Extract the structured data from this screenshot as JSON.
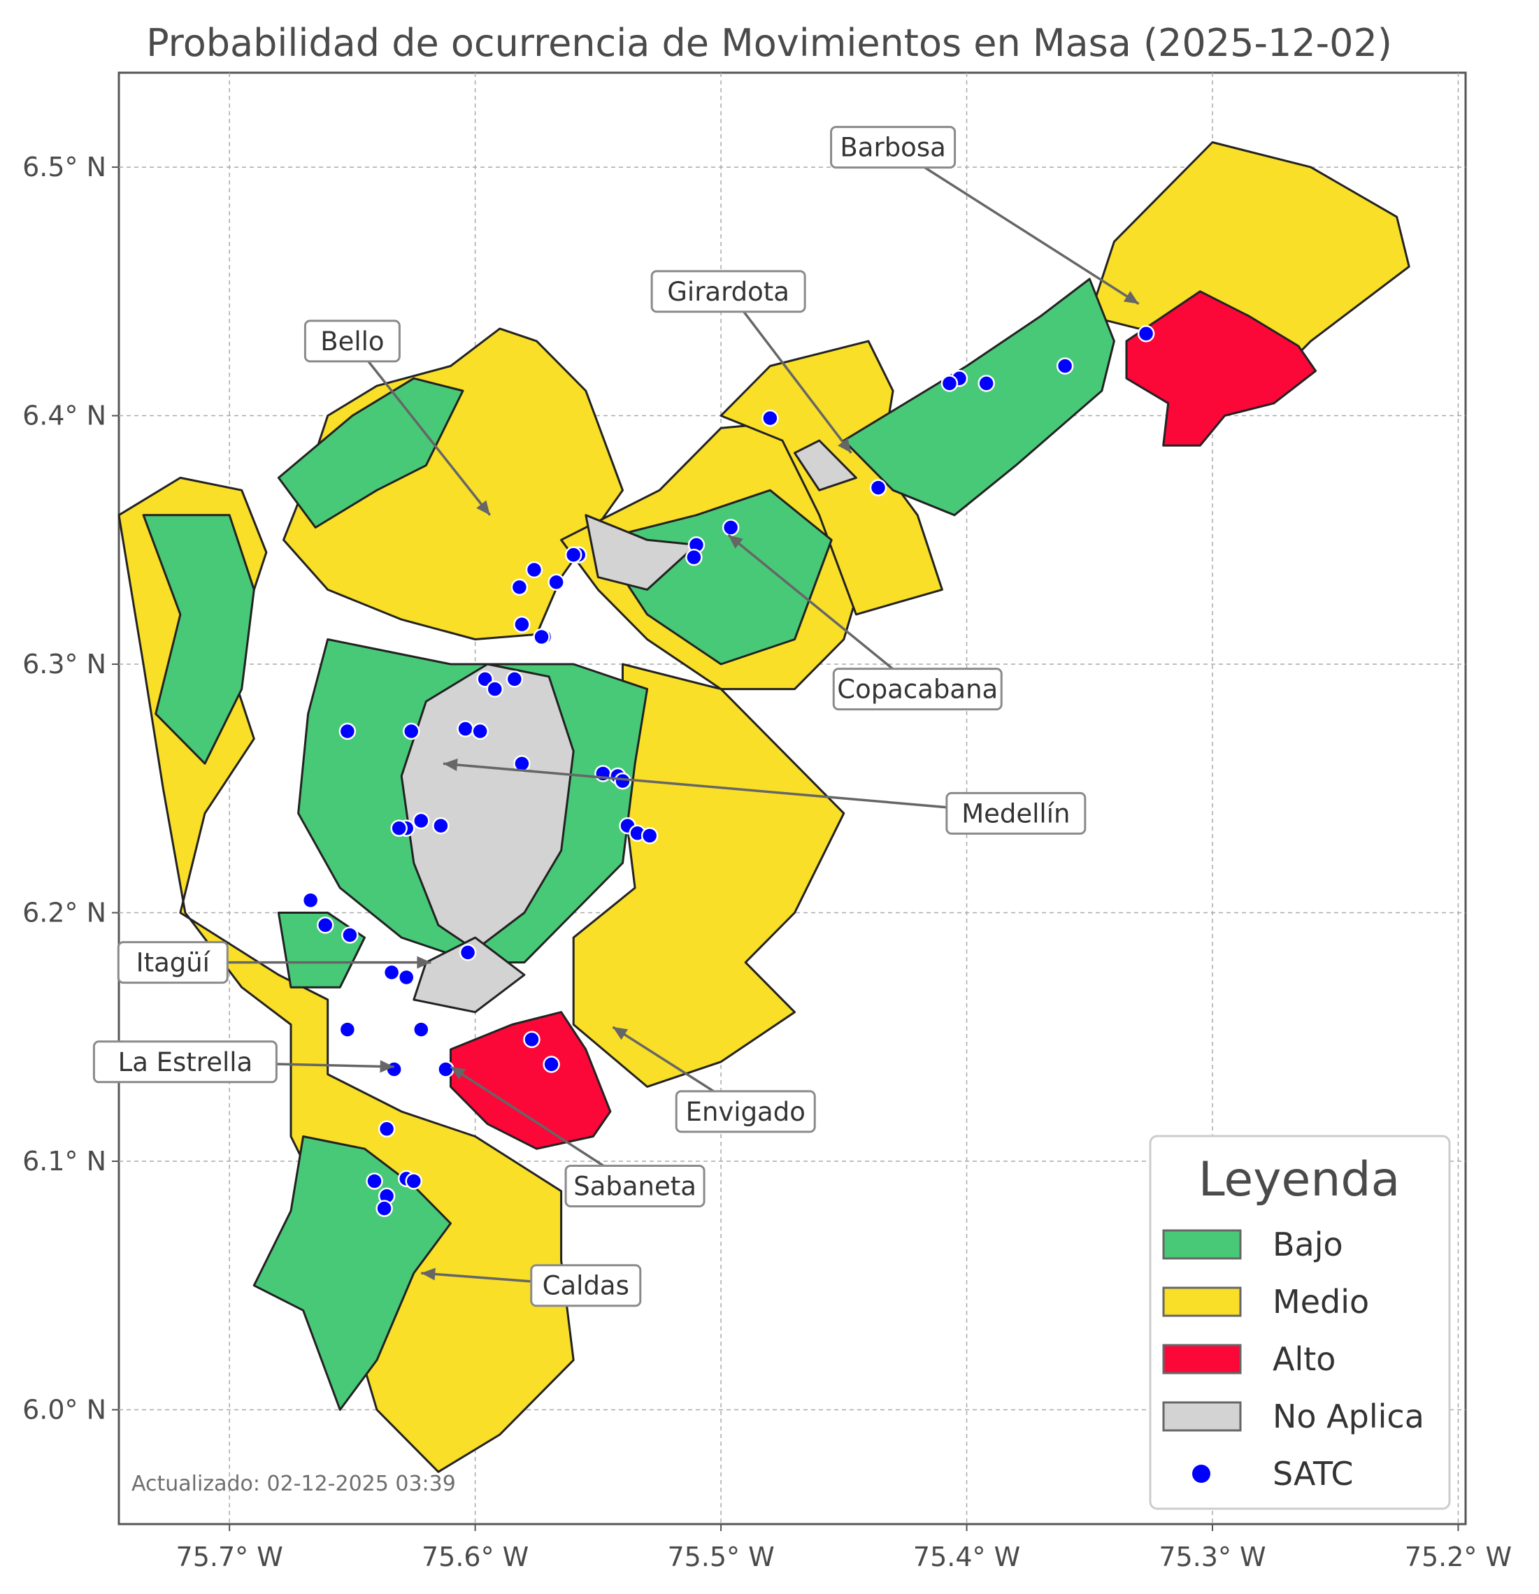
{
  "title": "Probabilidad de ocurrencia de Movimientos en Masa (2025-12-02)",
  "axes": {
    "x_ticks": [
      "75.7° W",
      "75.6° W",
      "75.5° W",
      "75.4° W",
      "75.3° W",
      "75.2° W"
    ],
    "y_ticks": [
      "6.5° N",
      "6.4° N",
      "6.3° N",
      "6.2° N",
      "6.1° N",
      "6.0° N"
    ],
    "lon_range": [
      -75.745,
      -75.197
    ],
    "lat_range": [
      5.954,
      6.538
    ]
  },
  "colors": {
    "bajo": "#48c978",
    "medio": "#f9df27",
    "alto": "#fb0738",
    "no_aplica": "#d3d3d3",
    "satc": "#0000ff"
  },
  "municipalities": [
    {
      "name": "Barbosa",
      "lon": -75.33,
      "lat": 6.445,
      "label_lon": -75.43,
      "label_lat": 6.508
    },
    {
      "name": "Girardota",
      "lon": -75.447,
      "lat": 6.385,
      "label_lon": -75.497,
      "label_lat": 6.45
    },
    {
      "name": "Bello",
      "lon": -75.594,
      "lat": 6.36,
      "label_lon": -75.65,
      "label_lat": 6.43
    },
    {
      "name": "Copacabana",
      "lon": -75.497,
      "lat": 6.352,
      "label_lon": -75.42,
      "label_lat": 6.29
    },
    {
      "name": "Medellín",
      "lon": -75.613,
      "lat": 6.26,
      "label_lon": -75.38,
      "label_lat": 6.24
    },
    {
      "name": "Itagüí",
      "lon": -75.618,
      "lat": 6.18,
      "label_lon": -75.723,
      "label_lat": 6.18
    },
    {
      "name": "La Estrella",
      "lon": -75.633,
      "lat": 6.138,
      "label_lon": -75.718,
      "label_lat": 6.14
    },
    {
      "name": "Envigado",
      "lon": -75.544,
      "lat": 6.154,
      "label_lon": -75.49,
      "label_lat": 6.12
    },
    {
      "name": "Sabaneta",
      "lon": -75.61,
      "lat": 6.138,
      "label_lon": -75.535,
      "label_lat": 6.09
    },
    {
      "name": "Caldas",
      "lon": -75.622,
      "lat": 6.055,
      "label_lon": -75.555,
      "label_lat": 6.05
    }
  ],
  "regions": {
    "medio": [
      [
        [
          -75.66,
          6.33
        ],
        [
          -75.63,
          6.318
        ],
        [
          -75.6,
          6.31
        ],
        [
          -75.575,
          6.312
        ],
        [
          -75.565,
          6.335
        ],
        [
          -75.54,
          6.37
        ],
        [
          -75.555,
          6.41
        ],
        [
          -75.575,
          6.43
        ],
        [
          -75.59,
          6.435
        ],
        [
          -75.61,
          6.42
        ],
        [
          -75.64,
          6.412
        ],
        [
          -75.66,
          6.4
        ],
        [
          -75.67,
          6.37
        ],
        [
          -75.678,
          6.35
        ]
      ],
      [
        [
          -75.72,
          6.375
        ],
        [
          -75.695,
          6.37
        ],
        [
          -75.685,
          6.345
        ],
        [
          -75.7,
          6.3
        ],
        [
          -75.69,
          6.27
        ],
        [
          -75.71,
          6.24
        ],
        [
          -75.72,
          6.2
        ],
        [
          -75.68,
          6.175
        ],
        [
          -75.66,
          6.165
        ],
        [
          -75.66,
          6.135
        ],
        [
          -75.63,
          6.12
        ],
        [
          -75.6,
          6.11
        ],
        [
          -75.565,
          6.088
        ],
        [
          -75.565,
          6.06
        ],
        [
          -75.56,
          6.02
        ],
        [
          -75.59,
          5.99
        ],
        [
          -75.615,
          5.975
        ],
        [
          -75.64,
          6.0
        ],
        [
          -75.655,
          6.05
        ],
        [
          -75.665,
          6.09
        ],
        [
          -75.675,
          6.11
        ],
        [
          -75.675,
          6.155
        ],
        [
          -75.695,
          6.17
        ],
        [
          -75.718,
          6.2
        ],
        [
          -75.727,
          6.25
        ],
        [
          -75.735,
          6.3
        ],
        [
          -75.745,
          6.36
        ]
      ],
      [
        [
          -75.565,
          6.35
        ],
        [
          -75.525,
          6.37
        ],
        [
          -75.5,
          6.395
        ],
        [
          -75.445,
          6.4
        ],
        [
          -75.435,
          6.36
        ],
        [
          -75.45,
          6.31
        ],
        [
          -75.47,
          6.29
        ],
        [
          -75.5,
          6.29
        ],
        [
          -75.53,
          6.31
        ],
        [
          -75.55,
          6.33
        ]
      ],
      [
        [
          -75.5,
          6.4
        ],
        [
          -75.48,
          6.42
        ],
        [
          -75.44,
          6.43
        ],
        [
          -75.43,
          6.41
        ],
        [
          -75.435,
          6.38
        ],
        [
          -75.42,
          6.36
        ],
        [
          -75.41,
          6.33
        ],
        [
          -75.445,
          6.32
        ],
        [
          -75.46,
          6.36
        ],
        [
          -75.475,
          6.39
        ]
      ],
      [
        [
          -75.35,
          6.44
        ],
        [
          -75.34,
          6.47
        ],
        [
          -75.3,
          6.51
        ],
        [
          -75.26,
          6.5
        ],
        [
          -75.225,
          6.48
        ],
        [
          -75.22,
          6.46
        ],
        [
          -75.26,
          6.43
        ],
        [
          -75.28,
          6.41
        ],
        [
          -75.3,
          6.44
        ],
        [
          -75.33,
          6.435
        ]
      ],
      [
        [
          -75.54,
          6.3
        ],
        [
          -75.5,
          6.29
        ],
        [
          -75.47,
          6.26
        ],
        [
          -75.45,
          6.24
        ],
        [
          -75.47,
          6.2
        ],
        [
          -75.49,
          6.18
        ],
        [
          -75.47,
          6.16
        ],
        [
          -75.5,
          6.14
        ],
        [
          -75.53,
          6.13
        ],
        [
          -75.56,
          6.155
        ],
        [
          -75.56,
          6.19
        ],
        [
          -75.535,
          6.21
        ],
        [
          -75.54,
          6.25
        ]
      ]
    ],
    "bajo": [
      [
        [
          -75.68,
          6.375
        ],
        [
          -75.65,
          6.4
        ],
        [
          -75.625,
          6.415
        ],
        [
          -75.605,
          6.41
        ],
        [
          -75.62,
          6.38
        ],
        [
          -75.64,
          6.37
        ],
        [
          -75.665,
          6.355
        ]
      ],
      [
        [
          -75.735,
          6.36
        ],
        [
          -75.72,
          6.32
        ],
        [
          -75.73,
          6.28
        ],
        [
          -75.71,
          6.26
        ],
        [
          -75.695,
          6.29
        ],
        [
          -75.69,
          6.33
        ],
        [
          -75.7,
          6.36
        ]
      ],
      [
        [
          -75.66,
          6.31
        ],
        [
          -75.61,
          6.3
        ],
        [
          -75.56,
          6.3
        ],
        [
          -75.53,
          6.29
        ],
        [
          -75.535,
          6.26
        ],
        [
          -75.54,
          6.22
        ],
        [
          -75.56,
          6.2
        ],
        [
          -75.58,
          6.18
        ],
        [
          -75.6,
          6.18
        ],
        [
          -75.63,
          6.19
        ],
        [
          -75.655,
          6.21
        ],
        [
          -75.672,
          6.24
        ],
        [
          -75.668,
          6.28
        ]
      ],
      [
        [
          -75.55,
          6.35
        ],
        [
          -75.51,
          6.36
        ],
        [
          -75.48,
          6.37
        ],
        [
          -75.455,
          6.35
        ],
        [
          -75.47,
          6.31
        ],
        [
          -75.5,
          6.3
        ],
        [
          -75.53,
          6.32
        ]
      ],
      [
        [
          -75.45,
          6.39
        ],
        [
          -75.4,
          6.42
        ],
        [
          -75.37,
          6.44
        ],
        [
          -75.35,
          6.455
        ],
        [
          -75.34,
          6.43
        ],
        [
          -75.345,
          6.41
        ],
        [
          -75.38,
          6.38
        ],
        [
          -75.405,
          6.36
        ],
        [
          -75.43,
          6.37
        ]
      ],
      [
        [
          -75.67,
          6.11
        ],
        [
          -75.645,
          6.105
        ],
        [
          -75.625,
          6.09
        ],
        [
          -75.61,
          6.075
        ],
        [
          -75.625,
          6.055
        ],
        [
          -75.64,
          6.02
        ],
        [
          -75.655,
          6.0
        ],
        [
          -75.67,
          6.04
        ],
        [
          -75.69,
          6.05
        ],
        [
          -75.675,
          6.08
        ]
      ],
      [
        [
          -75.68,
          6.2
        ],
        [
          -75.66,
          6.2
        ],
        [
          -75.645,
          6.19
        ],
        [
          -75.655,
          6.17
        ],
        [
          -75.675,
          6.17
        ]
      ]
    ],
    "alto": [
      [
        [
          -75.335,
          6.43
        ],
        [
          -75.305,
          6.45
        ],
        [
          -75.285,
          6.44
        ],
        [
          -75.265,
          6.428
        ],
        [
          -75.258,
          6.418
        ],
        [
          -75.275,
          6.405
        ],
        [
          -75.295,
          6.4
        ],
        [
          -75.305,
          6.388
        ],
        [
          -75.32,
          6.388
        ],
        [
          -75.318,
          6.405
        ],
        [
          -75.335,
          6.415
        ]
      ],
      [
        [
          -75.585,
          6.155
        ],
        [
          -75.565,
          6.16
        ],
        [
          -75.555,
          6.145
        ],
        [
          -75.545,
          6.12
        ],
        [
          -75.552,
          6.11
        ],
        [
          -75.575,
          6.105
        ],
        [
          -75.595,
          6.115
        ],
        [
          -75.61,
          6.13
        ],
        [
          -75.61,
          6.145
        ]
      ]
    ],
    "no_aplica": [
      [
        [
          -75.62,
          6.285
        ],
        [
          -75.595,
          6.3
        ],
        [
          -75.57,
          6.295
        ],
        [
          -75.56,
          6.265
        ],
        [
          -75.565,
          6.225
        ],
        [
          -75.58,
          6.2
        ],
        [
          -75.6,
          6.185
        ],
        [
          -75.615,
          6.195
        ],
        [
          -75.625,
          6.22
        ],
        [
          -75.63,
          6.255
        ]
      ],
      [
        [
          -75.6,
          6.19
        ],
        [
          -75.58,
          6.175
        ],
        [
          -75.6,
          6.16
        ],
        [
          -75.625,
          6.165
        ],
        [
          -75.62,
          6.18
        ]
      ],
      [
        [
          -75.555,
          6.36
        ],
        [
          -75.53,
          6.35
        ],
        [
          -75.51,
          6.348
        ],
        [
          -75.53,
          6.33
        ],
        [
          -75.55,
          6.335
        ]
      ],
      [
        [
          -75.46,
          6.39
        ],
        [
          -75.445,
          6.375
        ],
        [
          -75.46,
          6.37
        ],
        [
          -75.47,
          6.385
        ]
      ]
    ]
  },
  "satc_points": [
    [
      -75.327,
      6.433
    ],
    [
      -75.36,
      6.42
    ],
    [
      -75.392,
      6.413
    ],
    [
      -75.403,
      6.415
    ],
    [
      -75.407,
      6.413
    ],
    [
      -75.48,
      6.399
    ],
    [
      -75.436,
      6.371
    ],
    [
      -75.496,
      6.355
    ],
    [
      -75.51,
      6.348
    ],
    [
      -75.511,
      6.343
    ],
    [
      -75.558,
      6.344
    ],
    [
      -75.56,
      6.344
    ],
    [
      -75.567,
      6.333
    ],
    [
      -75.576,
      6.338
    ],
    [
      -75.582,
      6.331
    ],
    [
      -75.581,
      6.316
    ],
    [
      -75.572,
      6.311
    ],
    [
      -75.573,
      6.311
    ],
    [
      -75.596,
      6.294
    ],
    [
      -75.592,
      6.29
    ],
    [
      -75.584,
      6.294
    ],
    [
      -75.652,
      6.273
    ],
    [
      -75.626,
      6.273
    ],
    [
      -75.604,
      6.274
    ],
    [
      -75.598,
      6.273
    ],
    [
      -75.581,
      6.26
    ],
    [
      -75.548,
      6.256
    ],
    [
      -75.542,
      6.255
    ],
    [
      -75.54,
      6.253
    ],
    [
      -75.538,
      6.235
    ],
    [
      -75.534,
      6.232
    ],
    [
      -75.529,
      6.231
    ],
    [
      -75.614,
      6.235
    ],
    [
      -75.622,
      6.237
    ],
    [
      -75.628,
      6.234
    ],
    [
      -75.631,
      6.234
    ],
    [
      -75.667,
      6.205
    ],
    [
      -75.661,
      6.195
    ],
    [
      -75.651,
      6.191
    ],
    [
      -75.603,
      6.184
    ],
    [
      -75.634,
      6.176
    ],
    [
      -75.628,
      6.174
    ],
    [
      -75.652,
      6.153
    ],
    [
      -75.622,
      6.153
    ],
    [
      -75.612,
      6.137
    ],
    [
      -75.633,
      6.137
    ],
    [
      -75.577,
      6.149
    ],
    [
      -75.569,
      6.139
    ],
    [
      -75.636,
      6.113
    ],
    [
      -75.641,
      6.092
    ],
    [
      -75.628,
      6.093
    ],
    [
      -75.625,
      6.092
    ],
    [
      -75.636,
      6.086
    ],
    [
      -75.637,
      6.081
    ]
  ],
  "legend": {
    "title": "Leyenda",
    "items": [
      {
        "label": "Bajo",
        "kind": "bajo"
      },
      {
        "label": "Medio",
        "kind": "medio"
      },
      {
        "label": "Alto",
        "kind": "alto"
      },
      {
        "label": "No Aplica",
        "kind": "no_aplica"
      },
      {
        "label": "SATC",
        "kind": "satc"
      }
    ]
  },
  "footer": "Actualizado: 02-12-2025 03:39"
}
